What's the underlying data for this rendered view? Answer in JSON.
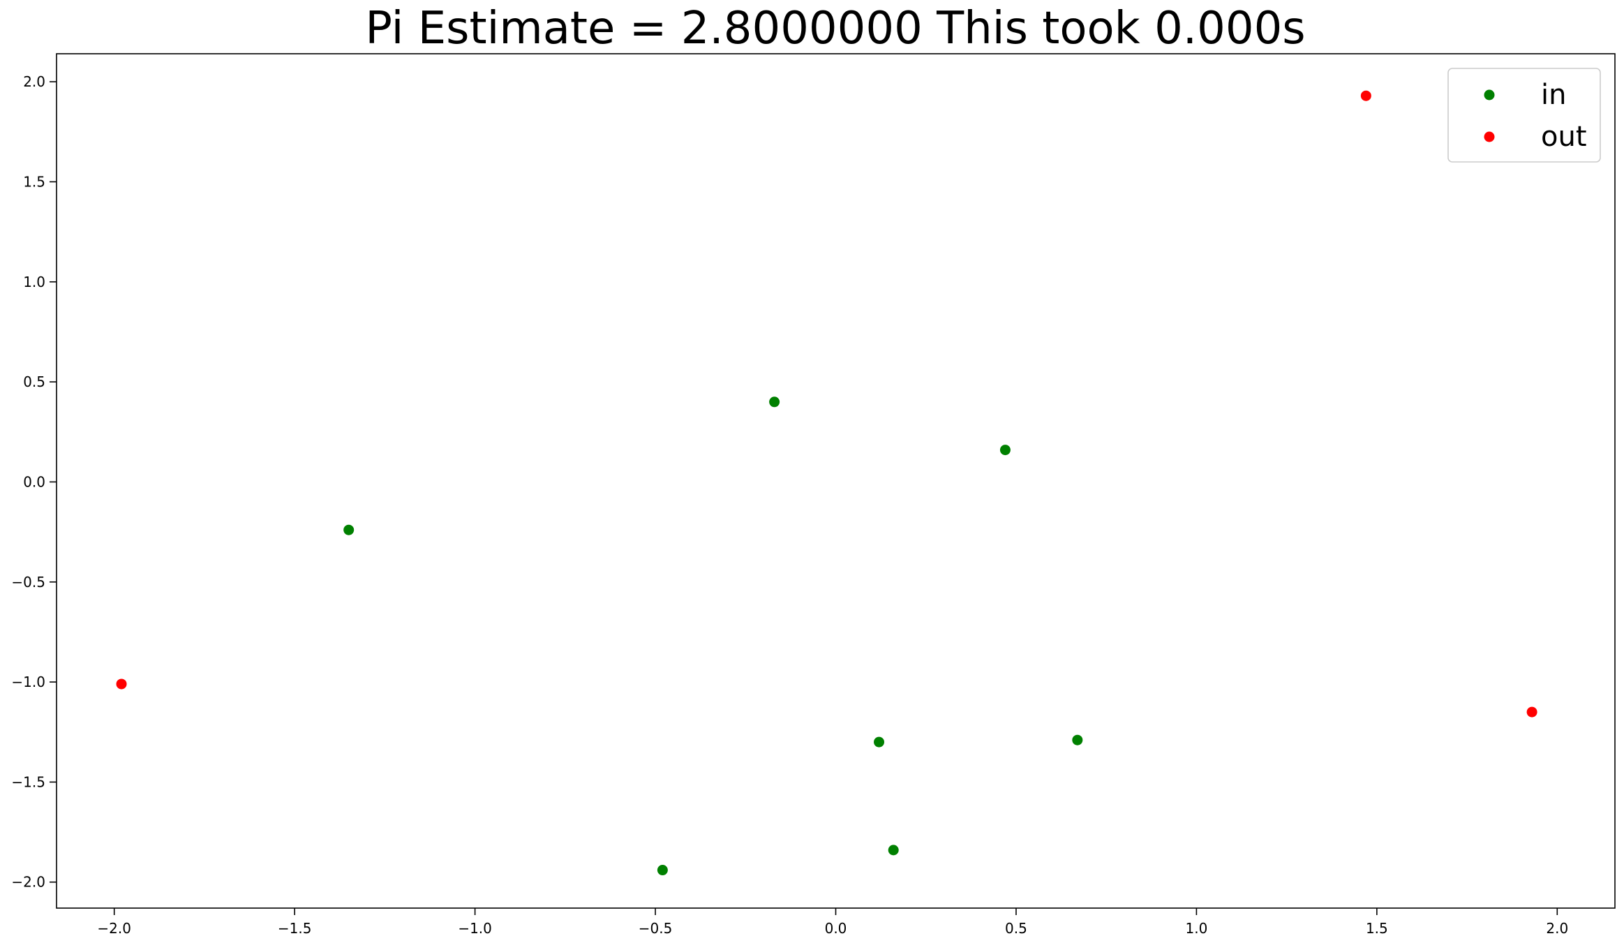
{
  "chart_data": {
    "type": "scatter",
    "title": "Pi Estimate = 2.8000000 This took 0.000s",
    "xlabel": "",
    "ylabel": "",
    "xlim": [
      -2.16,
      2.16
    ],
    "ylim": [
      -2.13,
      2.14
    ],
    "x_ticks": [
      -2.0,
      -1.5,
      -1.0,
      -0.5,
      0.0,
      0.5,
      1.0,
      1.5,
      2.0
    ],
    "x_tick_labels": [
      "−2.0",
      "−1.5",
      "−1.0",
      "−0.5",
      "0.0",
      "0.5",
      "1.0",
      "1.5",
      "2.0"
    ],
    "y_ticks": [
      2.0,
      1.5,
      1.0,
      0.5,
      0.0,
      -0.5,
      -1.0,
      -1.5,
      -2.0
    ],
    "y_tick_labels": [
      "2.0",
      "1.5",
      "1.0",
      "0.5",
      "0.0",
      "−0.5",
      "−1.0",
      "−1.5",
      "−2.0"
    ],
    "grid": false,
    "legend_position": "top-right",
    "series": [
      {
        "name": "in",
        "color": "#008000",
        "points": [
          {
            "x": -0.17,
            "y": 0.4
          },
          {
            "x": 0.47,
            "y": 0.16
          },
          {
            "x": -1.35,
            "y": -0.24
          },
          {
            "x": 0.12,
            "y": -1.3
          },
          {
            "x": 0.67,
            "y": -1.29
          },
          {
            "x": 0.16,
            "y": -1.84
          },
          {
            "x": -0.48,
            "y": -1.94
          }
        ]
      },
      {
        "name": "out",
        "color": "#ff0000",
        "points": [
          {
            "x": 1.47,
            "y": 1.93
          },
          {
            "x": -1.98,
            "y": -1.01
          },
          {
            "x": 1.93,
            "y": -1.15
          }
        ]
      }
    ]
  }
}
